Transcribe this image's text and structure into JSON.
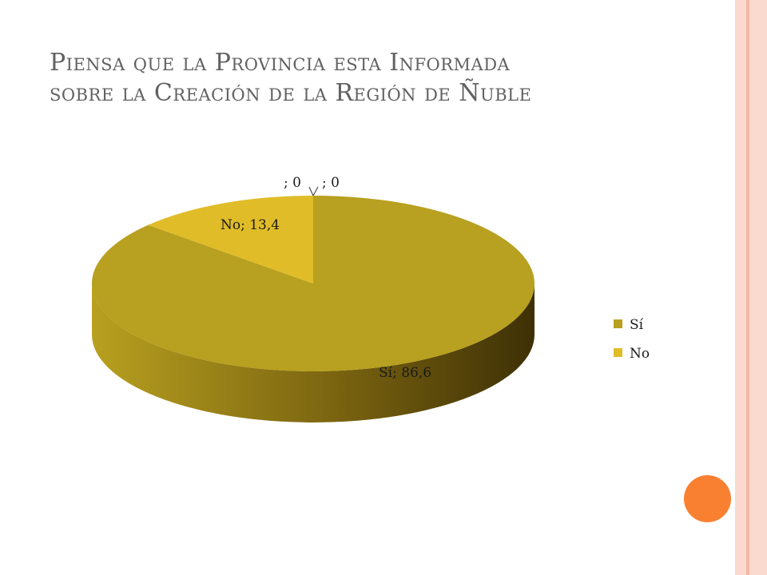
{
  "slide": {
    "title_line1": "Piensa que la Provincia esta Informada",
    "title_line2": "sobre la Creación de la Región de Ñuble"
  },
  "colors": {
    "si": "#B8A020",
    "si_side_dark": "#4A3A08",
    "no": "#E0BC28",
    "border_outer": "#F4B8A6",
    "border_inner": "#FAD9CE",
    "circle": "#FA8031"
  },
  "chart_data": {
    "type": "pie",
    "title": "",
    "slices": [
      {
        "name": "Sí",
        "value": 86.6,
        "label": "Sí; 86,6"
      },
      {
        "name": "No",
        "value": 13.4,
        "label": "No; 13,4"
      },
      {
        "name": "",
        "value": 0,
        "label": "; 0"
      },
      {
        "name": "",
        "value": 0,
        "label": "; 0"
      }
    ],
    "legend": [
      "Sí",
      "No"
    ],
    "legend_position": "right",
    "style": "3d"
  }
}
